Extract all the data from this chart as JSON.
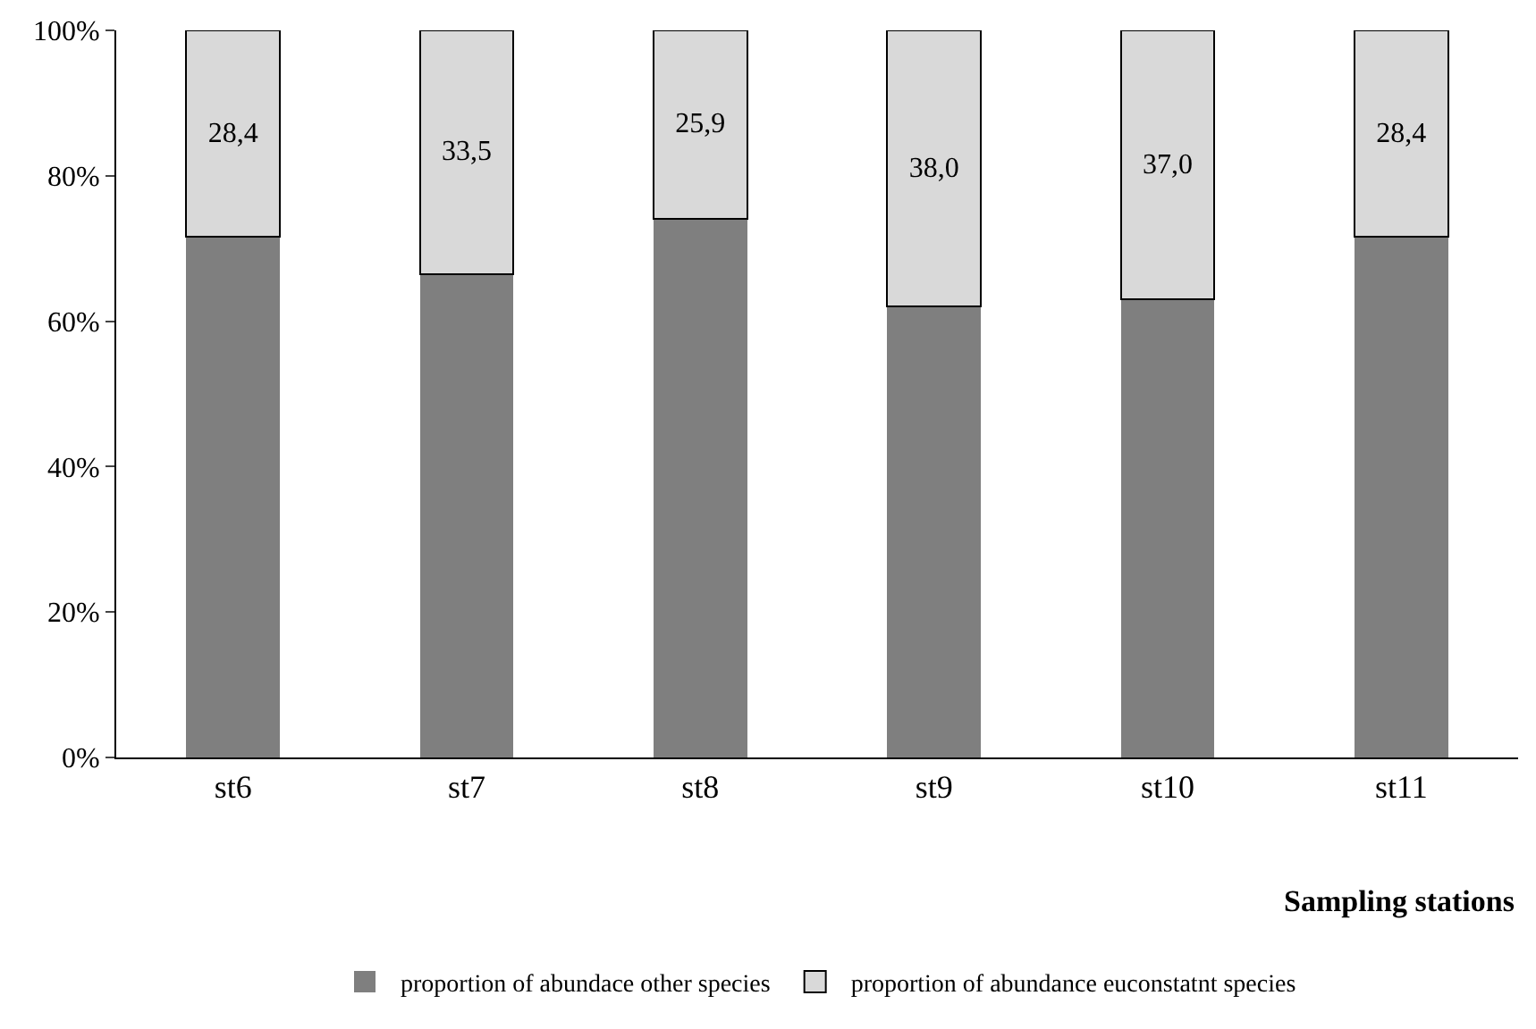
{
  "chart_data": {
    "type": "bar",
    "stacked": true,
    "xlabel": "Sampling stations",
    "categories": [
      "st6",
      "st7",
      "st8",
      "st9",
      "st10",
      "st11"
    ],
    "series": [
      {
        "name": "proportion of abundace other species",
        "color": "#7f7f7f",
        "values": [
          71.6,
          66.5,
          74.1,
          62.0,
          63.0,
          71.6
        ]
      },
      {
        "name": "proportion of abundance euconstatnt species",
        "color": "#d9d9d9",
        "values": [
          28.4,
          33.5,
          25.9,
          38.0,
          37.0,
          28.4
        ],
        "value_labels": [
          "28,4",
          "33,5",
          "25,9",
          "38,0",
          "37,0",
          "28,4"
        ]
      }
    ],
    "ylim": [
      0,
      100
    ],
    "yticks": [
      {
        "value": 0,
        "label": "0%"
      },
      {
        "value": 20,
        "label": "20%"
      },
      {
        "value": 40,
        "label": "40%"
      },
      {
        "value": 60,
        "label": "60%"
      },
      {
        "value": 80,
        "label": "80%"
      },
      {
        "value": 100,
        "label": "100%"
      }
    ],
    "grid": false,
    "legend": "bottom"
  }
}
